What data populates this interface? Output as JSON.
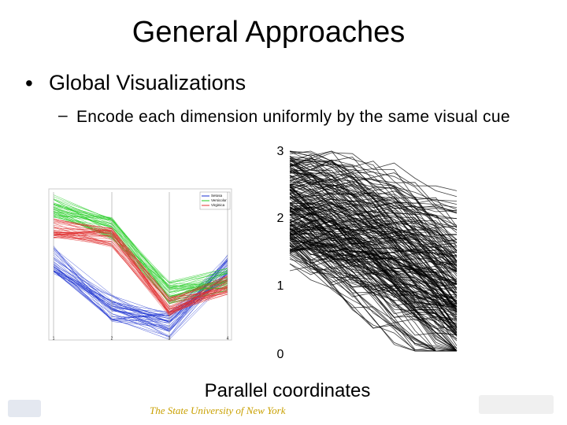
{
  "title": "General Approaches",
  "bullets": [
    {
      "text": "Global Visualizations",
      "sub": [
        "Encode each dimension uniformly by the same visual cue"
      ]
    }
  ],
  "figure_left": {
    "legend": [
      "Setosa",
      "Versicolor",
      "Virginica"
    ],
    "x_ticks": [
      "1",
      "2",
      "3",
      "4"
    ]
  },
  "figure_right": {
    "y_ticks": [
      "3",
      "2",
      "1",
      "0"
    ]
  },
  "caption": "Parallel coordinates",
  "footer": "The State University of New York"
}
